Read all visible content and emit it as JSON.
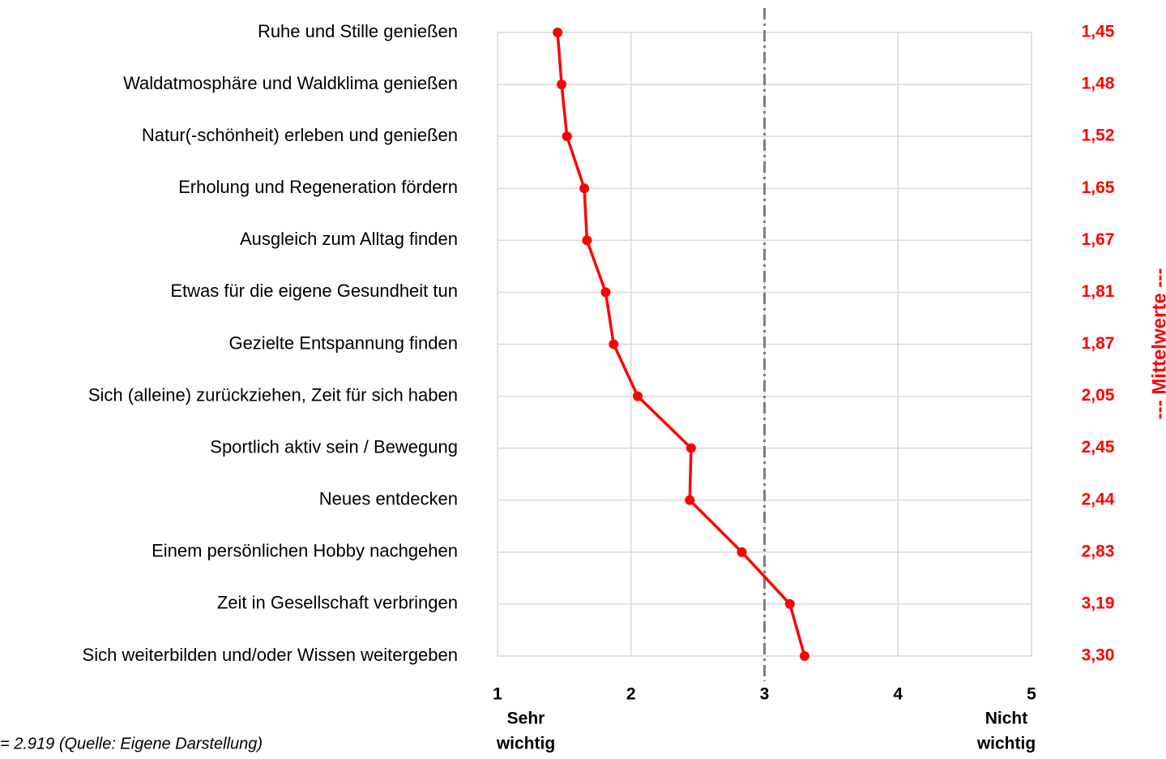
{
  "chart_data": {
    "type": "line",
    "orientation": "horizontal",
    "categories": [
      "Ruhe und Stille genießen",
      "Waldatmosphäre und Waldklima genießen",
      "Natur(-schönheit) erleben und genießen",
      "Erholung und Regeneration fördern",
      "Ausgleich zum Alltag  finden",
      "Etwas  für die eigene Gesundheit tun",
      "Gezielte  Entspannung finden",
      "Sich (alleine) zurückziehen, Zeit für sich haben",
      "Sportlich aktiv sein / Bewegung",
      "Neues entdecken",
      "Einem persönlichen Hobby  nachgehen",
      "Zeit in Gesellschaft  verbringen",
      "Sich weiterbilden und/oder Wissen weitergeben"
    ],
    "series": [
      {
        "name": "Mittelwerte",
        "color": "#ff0000",
        "values": [
          1.45,
          1.48,
          1.52,
          1.65,
          1.67,
          1.81,
          1.87,
          2.05,
          2.45,
          2.44,
          2.83,
          3.19,
          3.3
        ],
        "value_labels": [
          "1,45",
          "1,48",
          "1,52",
          "1,65",
          "1,67",
          "1,81",
          "1,87",
          "2,05",
          "2,45",
          "2,44",
          "2,83",
          "3,19",
          "3,30"
        ]
      }
    ],
    "xlim": [
      1,
      5
    ],
    "xticks": [
      1,
      2,
      3,
      4,
      5
    ],
    "grid": true,
    "reference_line": 3,
    "reference_color": "#7f7f7f",
    "low_label": [
      "Sehr",
      "wichtig"
    ],
    "high_label": [
      "Nicht",
      "wichtig"
    ],
    "right_axis_label": "--- Mittelwerte ---",
    "footnote": "= 2.919 (Quelle: Eigene Darstellung)"
  }
}
